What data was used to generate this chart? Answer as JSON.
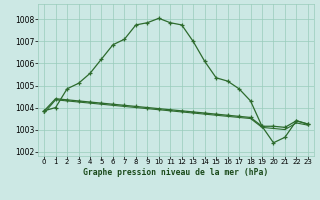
{
  "title": "Graphe pression niveau de la mer (hPa)",
  "background_color": "#cce8e4",
  "grid_color": "#99ccbb",
  "line_color": "#2d6b2d",
  "ylim": [
    1001.8,
    1008.7
  ],
  "xlim": [
    -0.5,
    23.5
  ],
  "yticks": [
    1002,
    1003,
    1004,
    1005,
    1006,
    1007,
    1008
  ],
  "xticks": [
    0,
    1,
    2,
    3,
    4,
    5,
    6,
    7,
    8,
    9,
    10,
    11,
    12,
    13,
    14,
    15,
    16,
    17,
    18,
    19,
    20,
    21,
    22,
    23
  ],
  "series_main": [
    1003.85,
    1004.0,
    1004.85,
    1005.1,
    1005.55,
    1006.2,
    1006.85,
    1007.1,
    1007.75,
    1007.85,
    1008.05,
    1007.85,
    1007.75,
    1007.0,
    1006.1,
    1005.35,
    1005.2,
    1004.85,
    1004.3,
    1003.15,
    1002.4,
    1002.65,
    1003.4,
    1003.25
  ],
  "series_flat1": [
    1003.85,
    1004.4,
    1004.35,
    1004.3,
    1004.25,
    1004.2,
    1004.15,
    1004.1,
    1004.05,
    1004.0,
    1003.95,
    1003.9,
    1003.85,
    1003.8,
    1003.75,
    1003.7,
    1003.65,
    1003.6,
    1003.55,
    1003.15,
    1003.15,
    1003.1,
    1003.4,
    1003.25
  ],
  "series_flat2": [
    1003.75,
    1004.35,
    1004.3,
    1004.25,
    1004.2,
    1004.15,
    1004.1,
    1004.05,
    1004.0,
    1003.95,
    1003.9,
    1003.85,
    1003.8,
    1003.75,
    1003.7,
    1003.65,
    1003.6,
    1003.55,
    1003.5,
    1003.1,
    1003.05,
    1003.0,
    1003.3,
    1003.2
  ]
}
